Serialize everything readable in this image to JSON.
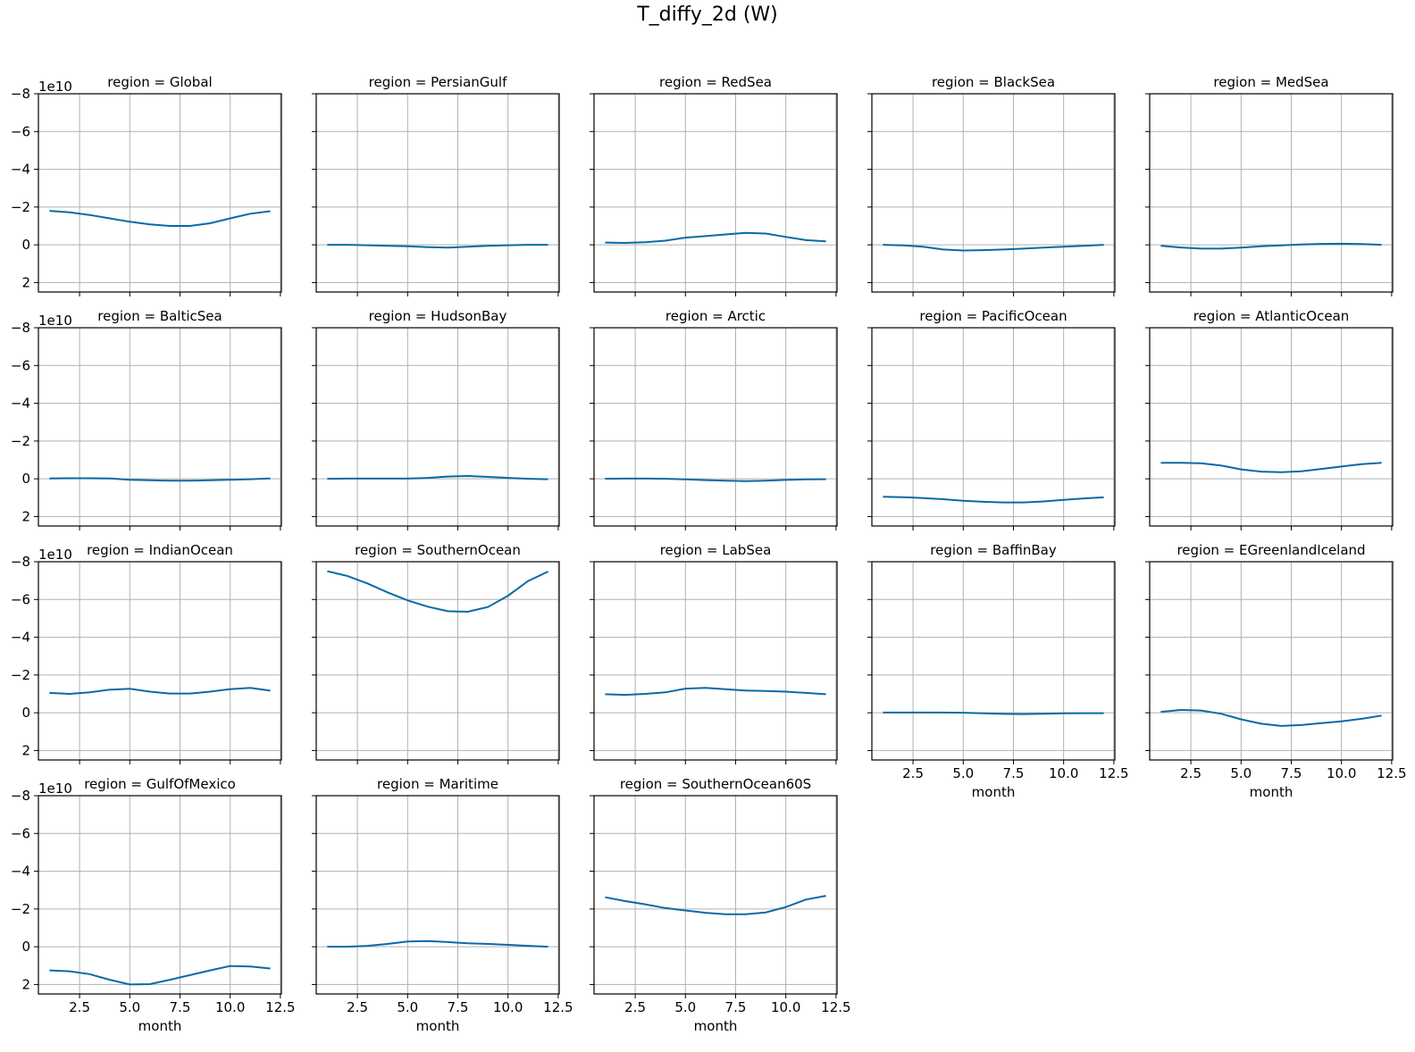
{
  "figure": {
    "suptitle": "T_diffy_2d (W)",
    "offset_text": "1e10",
    "xlabel": "month",
    "line_color": "#0a6aa6",
    "grid_color": "#b0b0b0"
  },
  "chart_data": {
    "type": "line",
    "layout": "facet-grid 4x5",
    "title": "T_diffy_2d (W)",
    "xlabel": "month",
    "ylabel": "",
    "xlim": [
      0.45,
      12.55
    ],
    "ylim": [
      2.5,
      -8
    ],
    "y_inverted": true,
    "y_scale_note": "1e10",
    "grid": true,
    "xticks": [
      2.5,
      5.0,
      7.5,
      10.0,
      12.5
    ],
    "xtick_labels": [
      "2.5",
      "5.0",
      "7.5",
      "10.0",
      "12.5"
    ],
    "yticks": [
      -8,
      -6,
      -4,
      -2,
      0,
      2
    ],
    "ytick_labels": [
      "−8",
      "−6",
      "−4",
      "−2",
      "0",
      "2"
    ],
    "x": [
      1,
      2,
      3,
      4,
      5,
      6,
      7,
      8,
      9,
      10,
      11,
      12
    ],
    "panels": [
      {
        "title": "region = Global",
        "values": [
          -1.8,
          -1.72,
          -1.58,
          -1.4,
          -1.22,
          -1.08,
          -1.0,
          -1.0,
          -1.14,
          -1.4,
          -1.65,
          -1.78
        ]
      },
      {
        "title": "region = PersianGulf",
        "values": [
          0.0,
          0.0,
          0.02,
          0.05,
          0.08,
          0.12,
          0.15,
          0.1,
          0.05,
          0.02,
          0.0,
          0.0
        ]
      },
      {
        "title": "region = RedSea",
        "values": [
          -0.12,
          -0.1,
          -0.14,
          -0.22,
          -0.38,
          -0.46,
          -0.55,
          -0.63,
          -0.6,
          -0.42,
          -0.25,
          -0.18
        ]
      },
      {
        "title": "region = BlackSea",
        "values": [
          0.0,
          0.03,
          0.1,
          0.25,
          0.3,
          0.28,
          0.25,
          0.2,
          0.15,
          0.1,
          0.05,
          0.0
        ]
      },
      {
        "title": "region = MedSea",
        "values": [
          0.05,
          0.14,
          0.2,
          0.2,
          0.15,
          0.08,
          0.03,
          -0.02,
          -0.05,
          -0.06,
          -0.04,
          0.0
        ]
      },
      {
        "title": "region = BalticSea",
        "values": [
          -0.02,
          -0.03,
          -0.03,
          -0.02,
          0.05,
          0.08,
          0.1,
          0.1,
          0.08,
          0.05,
          0.02,
          -0.02
        ]
      },
      {
        "title": "region = HudsonBay",
        "values": [
          0.0,
          -0.01,
          -0.01,
          -0.01,
          -0.01,
          -0.05,
          -0.12,
          -0.15,
          -0.1,
          -0.05,
          0.0,
          0.02
        ]
      },
      {
        "title": "region = Arctic",
        "values": [
          0.0,
          -0.01,
          -0.01,
          0.0,
          0.03,
          0.07,
          0.1,
          0.12,
          0.1,
          0.06,
          0.03,
          0.02
        ]
      },
      {
        "title": "region = PacificOcean",
        "values": [
          0.95,
          0.97,
          1.02,
          1.08,
          1.16,
          1.22,
          1.25,
          1.25,
          1.2,
          1.12,
          1.04,
          0.98
        ]
      },
      {
        "title": "region = AtlanticOcean",
        "values": [
          -0.85,
          -0.85,
          -0.82,
          -0.7,
          -0.5,
          -0.38,
          -0.35,
          -0.4,
          -0.52,
          -0.65,
          -0.78,
          -0.85
        ]
      },
      {
        "title": "region = IndianOcean",
        "values": [
          -1.05,
          -1.0,
          -1.08,
          -1.22,
          -1.27,
          -1.12,
          -1.02,
          -1.02,
          -1.12,
          -1.25,
          -1.32,
          -1.17
        ]
      },
      {
        "title": "region = SouthernOcean",
        "values": [
          -7.5,
          -7.25,
          -6.85,
          -6.38,
          -5.95,
          -5.62,
          -5.38,
          -5.35,
          -5.6,
          -6.2,
          -6.98,
          -7.48
        ]
      },
      {
        "title": "region = LabSea",
        "values": [
          -0.98,
          -0.95,
          -1.0,
          -1.08,
          -1.28,
          -1.32,
          -1.25,
          -1.18,
          -1.15,
          -1.12,
          -1.05,
          -0.98
        ]
      },
      {
        "title": "region = BaffinBay",
        "values": [
          -0.01,
          -0.01,
          -0.01,
          -0.01,
          0.0,
          0.03,
          0.06,
          0.07,
          0.05,
          0.03,
          0.02,
          0.02
        ]
      },
      {
        "title": "region = EGreenlandIceland",
        "values": [
          -0.05,
          -0.15,
          -0.12,
          0.05,
          0.35,
          0.58,
          0.7,
          0.65,
          0.55,
          0.45,
          0.32,
          0.15
        ]
      },
      {
        "title": "region = GulfOfMexico",
        "values": [
          1.25,
          1.3,
          1.45,
          1.75,
          2.0,
          1.98,
          1.75,
          1.5,
          1.25,
          1.02,
          1.05,
          1.15
        ]
      },
      {
        "title": "region = Maritime",
        "values": [
          0.0,
          0.0,
          -0.05,
          -0.15,
          -0.28,
          -0.3,
          -0.25,
          -0.18,
          -0.15,
          -0.1,
          -0.05,
          0.0
        ]
      },
      {
        "title": "region = SouthernOcean60S",
        "values": [
          -2.62,
          -2.42,
          -2.25,
          -2.05,
          -1.92,
          -1.8,
          -1.72,
          -1.72,
          -1.82,
          -2.1,
          -2.5,
          -2.7
        ]
      }
    ]
  }
}
